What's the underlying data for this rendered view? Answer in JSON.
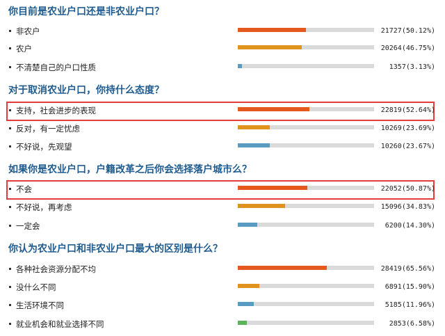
{
  "colors": {
    "question": "#1f5b8f",
    "highlight": "#e43b3b",
    "track": "#dadada",
    "orange_red": "#e5591e",
    "orange": "#e0941e",
    "blue": "#5a9bc2",
    "green": "#5bb35b"
  },
  "questions": [
    {
      "title": "你目前是农业户口还是非农业户口？",
      "options": [
        {
          "label": "非农户",
          "count": "21727(50.12%)",
          "share": 0.5012,
          "color": "orange_red"
        },
        {
          "label": "农户",
          "count": "20264(46.75%)",
          "share": 0.4675,
          "color": "orange"
        },
        {
          "label": "不清楚自己的户口性质",
          "count": "1357(3.13%)",
          "share": 0.0313,
          "color": "blue"
        }
      ]
    },
    {
      "title": "对于取消农业户口，你持什么态度？",
      "options": [
        {
          "label": "支持，社会进步的表现",
          "count": "22819(52.64%)",
          "share": 0.5264,
          "color": "orange_red",
          "highlighted": true
        },
        {
          "label": "反对，有一定忧虑",
          "count": "10269(23.69%)",
          "share": 0.2369,
          "color": "orange"
        },
        {
          "label": "不好说，先观望",
          "count": "10260(23.67%)",
          "share": 0.2367,
          "color": "blue"
        }
      ]
    },
    {
      "title": "如果你是农业户口，户籍改革之后你会选择落户城市么？",
      "options": [
        {
          "label": "不会",
          "count": "22052(50.87%)",
          "share": 0.5087,
          "color": "orange_red",
          "highlighted": true
        },
        {
          "label": "不好说，再考虑",
          "count": "15096(34.83%)",
          "share": 0.3483,
          "color": "orange"
        },
        {
          "label": "一定会",
          "count": "6200(14.30%)",
          "share": 0.143,
          "color": "blue"
        }
      ]
    },
    {
      "title": "你认为农业户口和非农业户口最大的区别是什么？",
      "options": [
        {
          "label": "各种社会资源分配不均",
          "count": "28419(65.56%)",
          "share": 0.6556,
          "color": "orange_red"
        },
        {
          "label": "没什么不同",
          "count": "6891(15.90%)",
          "share": 0.159,
          "color": "orange"
        },
        {
          "label": "生活环境不同",
          "count": "5185(11.96%)",
          "share": 0.1196,
          "color": "blue"
        },
        {
          "label": "就业机会和就业选择不同",
          "count": "2853(6.58%)",
          "share": 0.0658,
          "color": "green"
        }
      ]
    }
  ]
}
